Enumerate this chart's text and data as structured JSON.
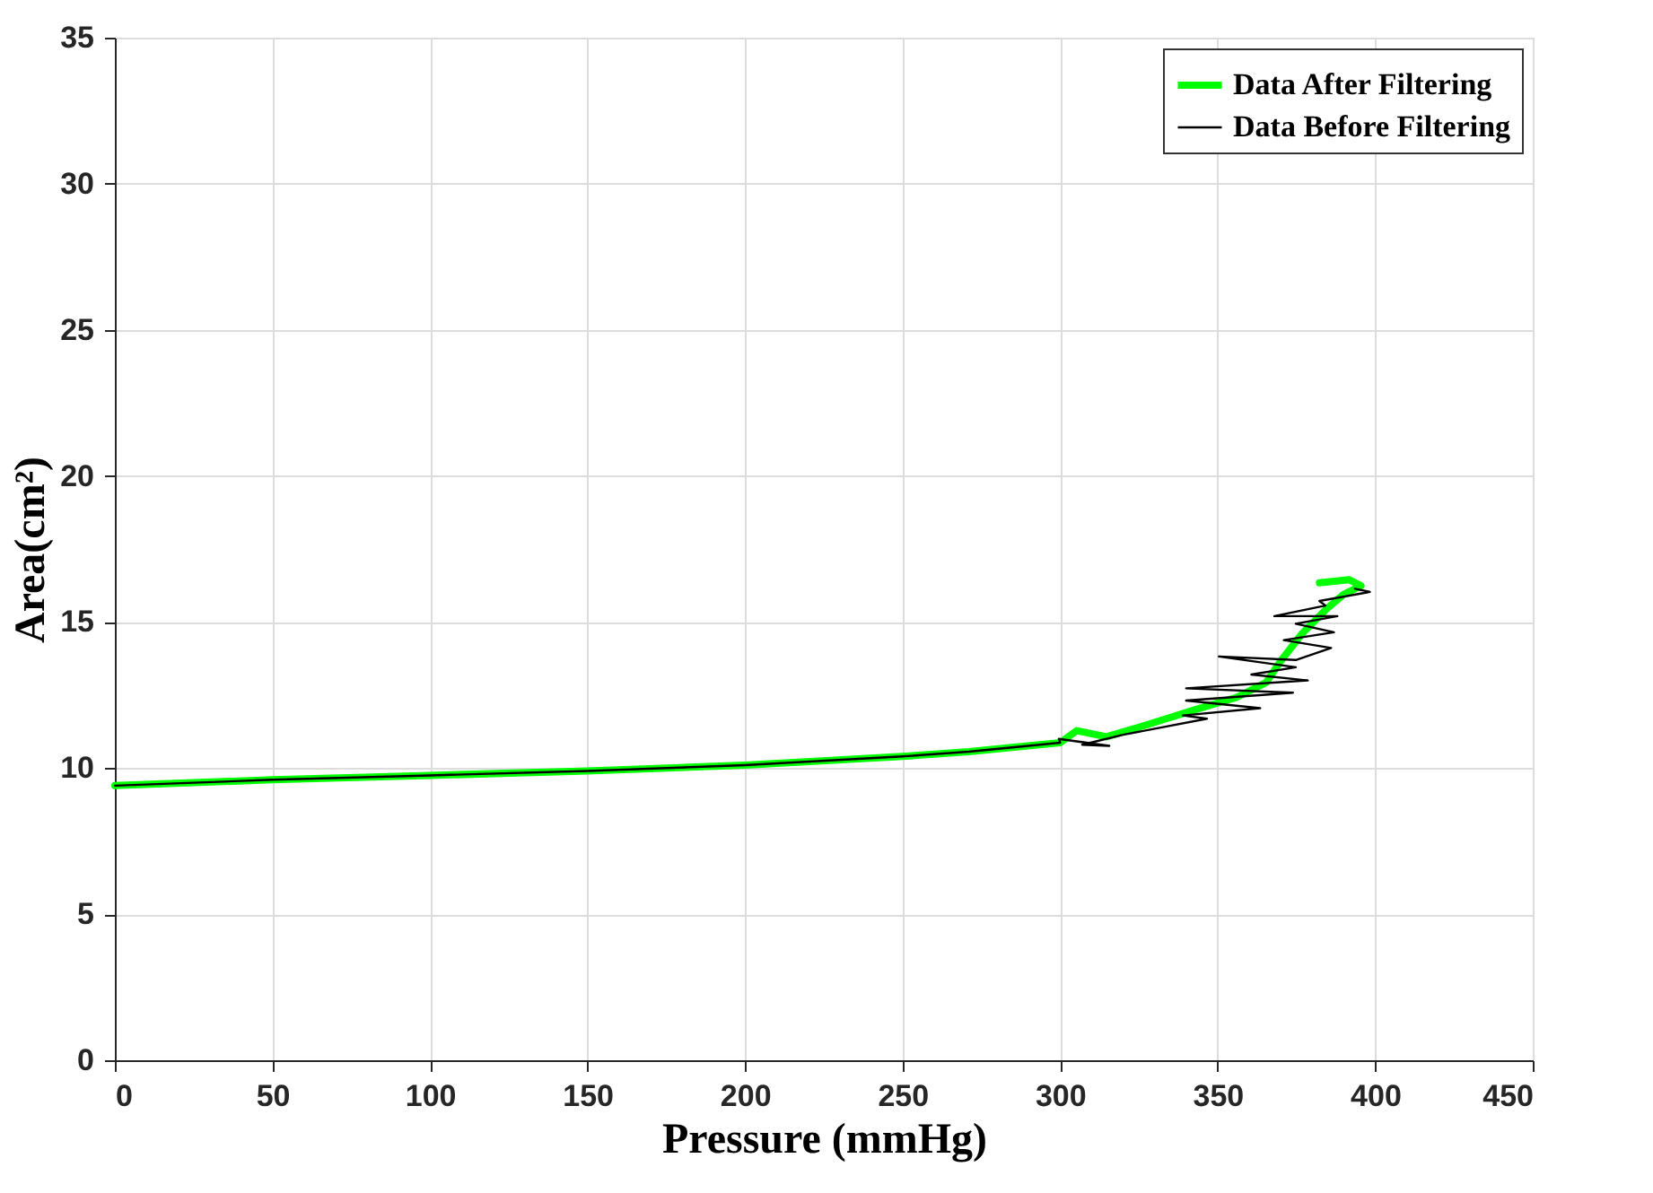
{
  "chart_data": {
    "type": "line",
    "xlabel": "Pressure (mmHg)",
    "ylabel": "Area(cm²)",
    "xlim": [
      0,
      450
    ],
    "xticks": [
      0,
      50,
      100,
      150,
      200,
      250,
      300,
      350,
      400,
      450
    ],
    "ylim": [
      0,
      35
    ],
    "yticks": [
      0,
      5,
      10,
      15,
      20,
      25,
      30,
      35
    ],
    "grid": true,
    "legend": "top right",
    "line_style": "solid",
    "marker": "none",
    "series": [
      {
        "name": "Data After Filtering",
        "color": "#00ff00",
        "x": [
          0,
          50,
          100,
          150,
          200,
          250,
          271,
          300,
          305.3,
          314.7,
          327.8,
          342.9,
          356,
          365.4,
          370,
          376.7,
          384.2,
          389.8,
          395.5,
          391.7,
          382.3
        ],
        "values": [
          9.4,
          9.6,
          9.75,
          9.9,
          10.1,
          10.4,
          10.56,
          10.87,
          11.28,
          11.07,
          11.49,
          12.0,
          12.42,
          12.93,
          13.66,
          14.59,
          15.41,
          15.93,
          16.24,
          16.45,
          16.34
        ]
      },
      {
        "name": "Data Before Filtering",
        "color": "#000000",
        "x": [
          0,
          50,
          100,
          150,
          200,
          250,
          271,
          300,
          299.6,
          315.6,
          307,
          320,
          346.6,
          339,
          363.5,
          340,
          373.9,
          340,
          378.6,
          360.7,
          374.8,
          350.4,
          374.8,
          386,
          371,
          386.9,
          374.8,
          388,
          368,
          384.2,
          382.3,
          398.3,
          393.6
        ],
        "values": [
          9.4,
          9.6,
          9.75,
          9.9,
          10.1,
          10.4,
          10.56,
          10.87,
          11.0,
          10.76,
          10.8,
          11.14,
          11.69,
          11.8,
          12.05,
          12.31,
          12.58,
          12.73,
          13.0,
          13.2,
          13.45,
          13.82,
          13.7,
          14.11,
          14.38,
          14.65,
          14.94,
          15.2,
          15.2,
          15.56,
          15.72,
          16.03,
          16.14
        ]
      }
    ]
  }
}
